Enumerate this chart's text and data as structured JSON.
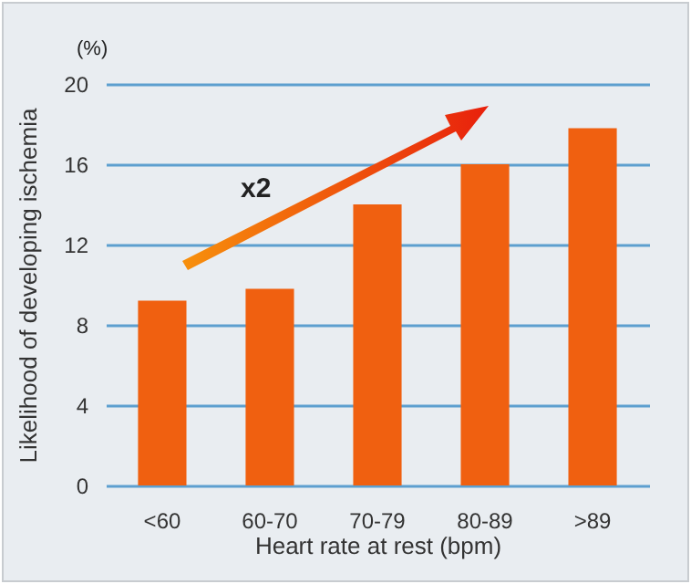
{
  "chart_data": {
    "type": "bar",
    "xlabel": "Heart rate at rest (bpm)",
    "ylabel": "Likelihood of developing ischemia",
    "categories": [
      "<60",
      "60-70",
      "70-79",
      "80-89",
      ">89"
    ],
    "values": [
      9.2,
      9.8,
      14,
      16,
      17.8
    ],
    "color": "#f06010",
    "ylim": [
      0,
      20
    ],
    "yticks": [
      0,
      4,
      8,
      12,
      16,
      20
    ],
    "grid": "y",
    "annotations": [
      "(%)",
      "x2"
    ]
  }
}
